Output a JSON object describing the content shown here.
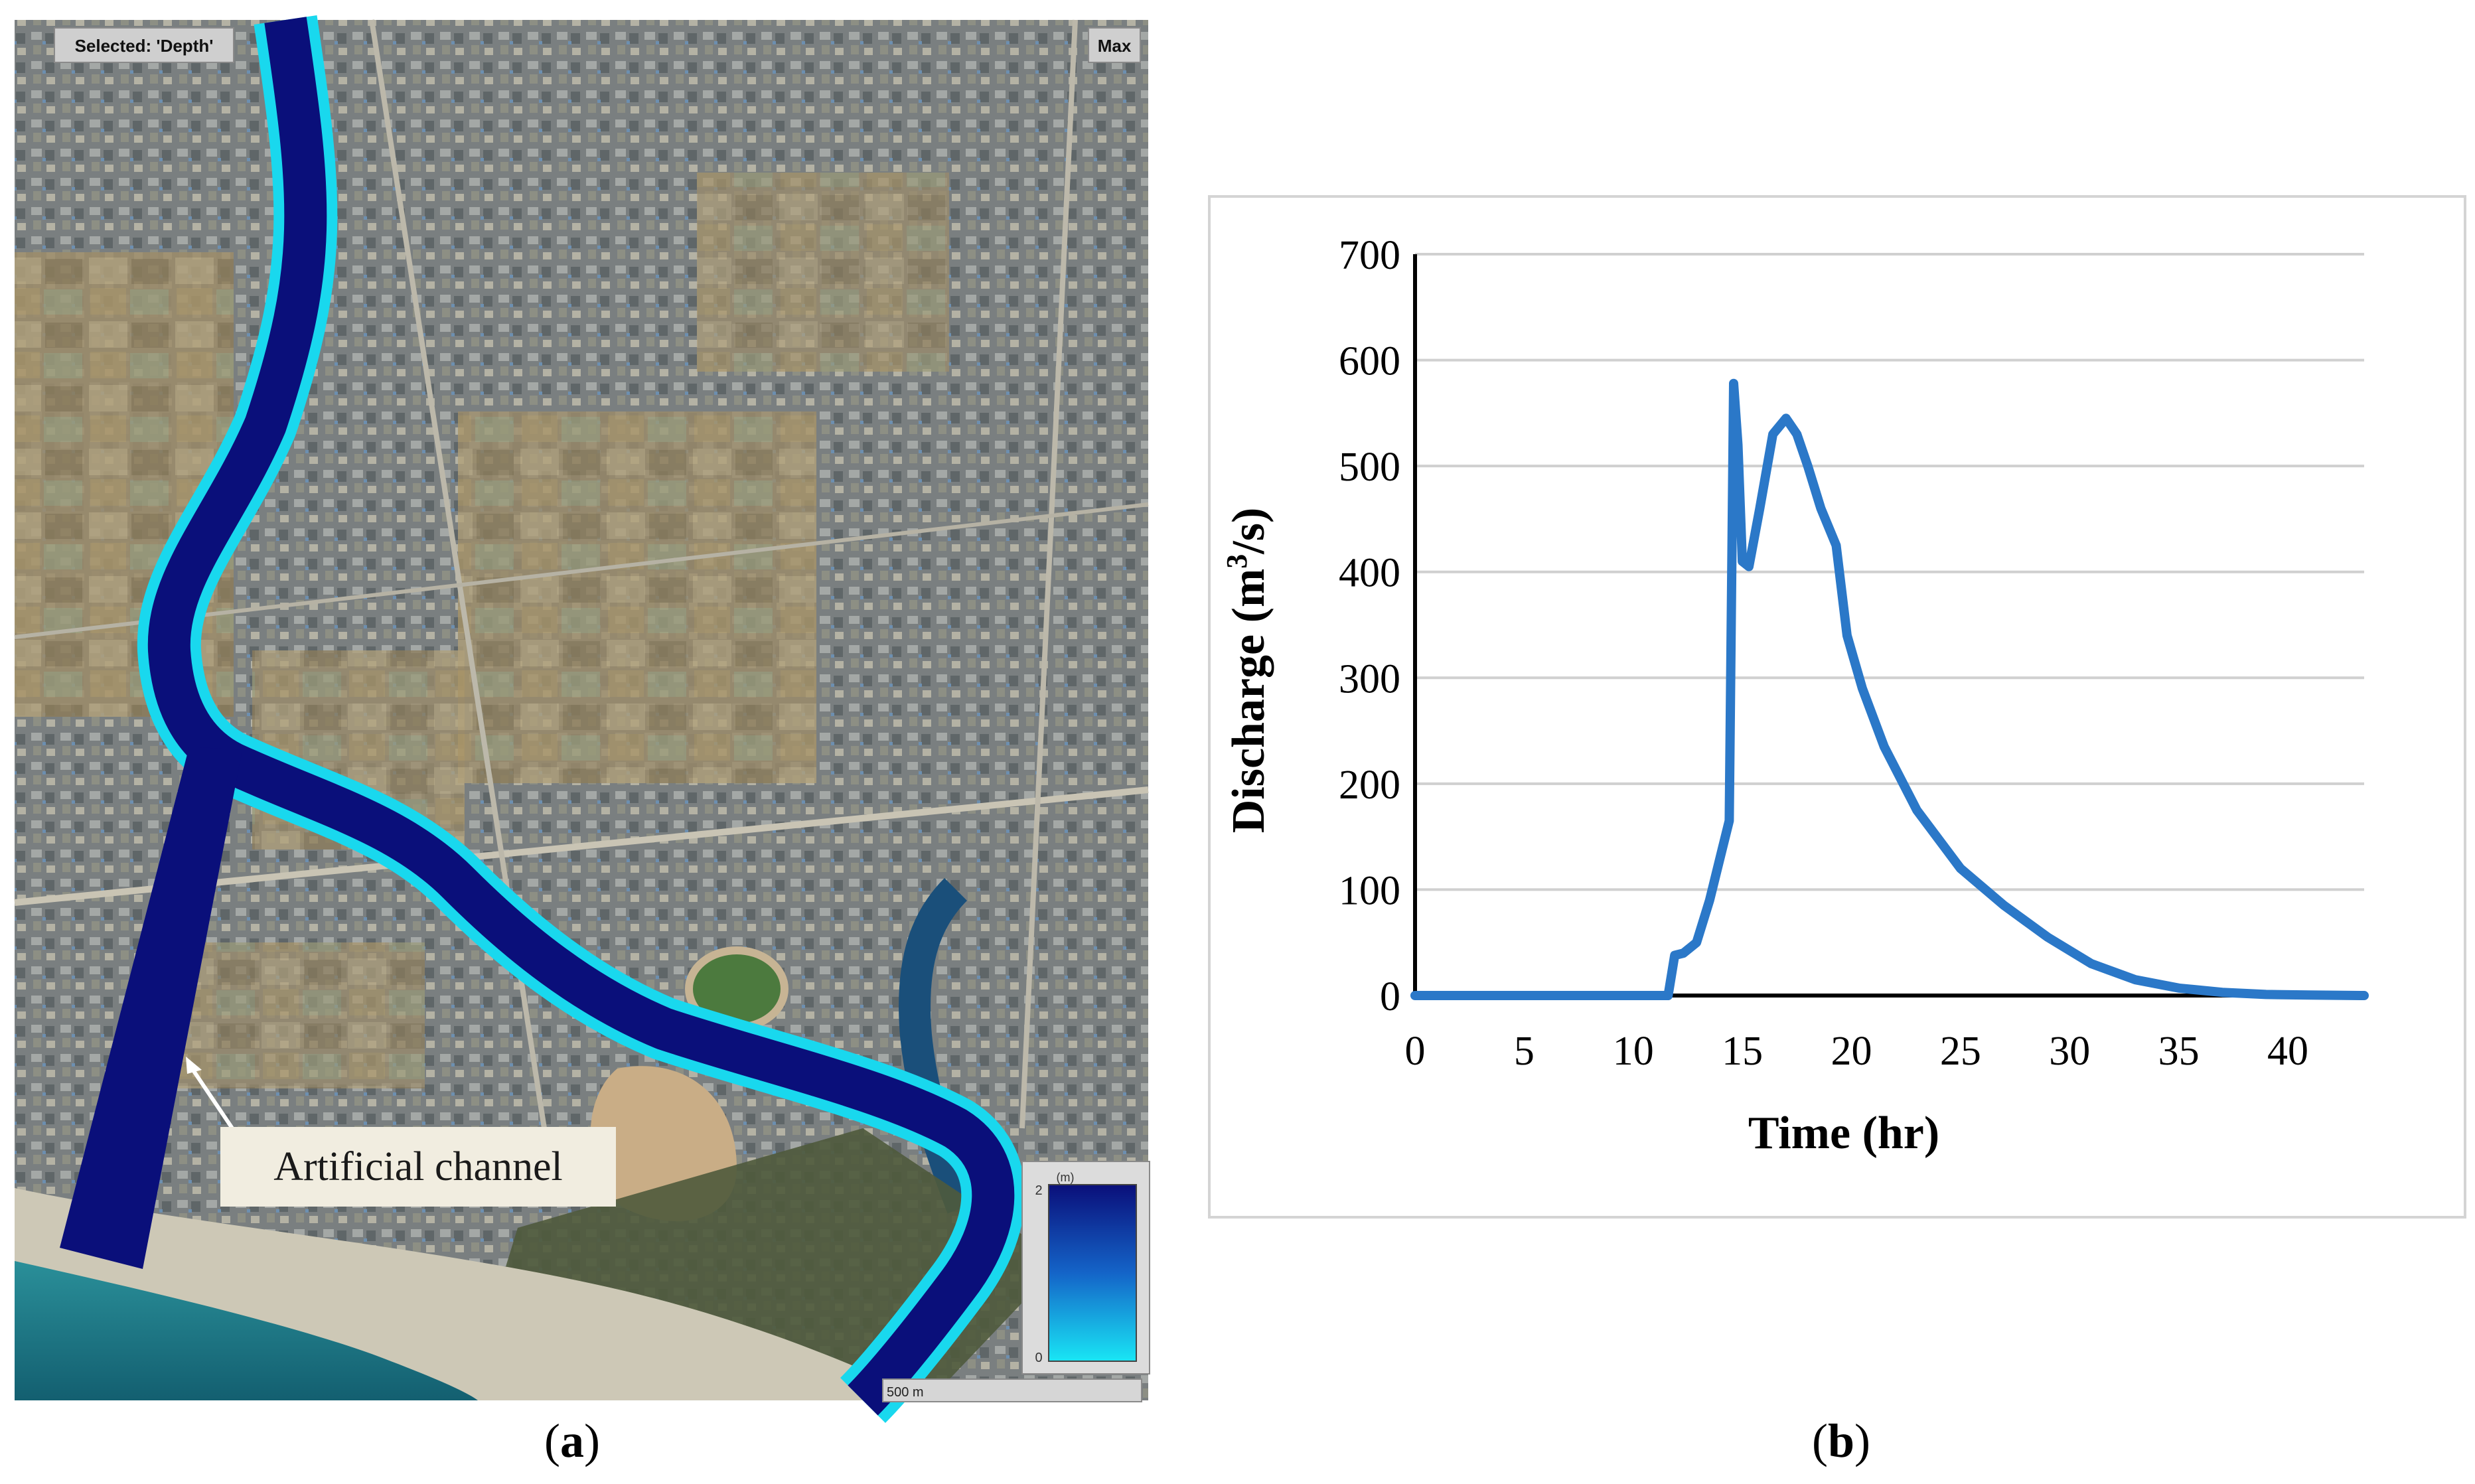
{
  "panel_a": {
    "label_open": "(",
    "label_letter": "a",
    "label_close": ")",
    "selected_tag": "Selected: 'Depth'",
    "max_tag": "Max",
    "channel_annotation": "Artificial channel",
    "legend_unit": "(m)",
    "legend_top_value": "2",
    "legend_bottom_value": "0",
    "scale_text": "500 m",
    "colors": {
      "deep_water": "#0a0f7a",
      "shallow_water": "#19e0f0",
      "sea": "#1c7f8f",
      "beach": "#cdc8b6"
    }
  },
  "panel_b": {
    "label_open": "(",
    "label_letter": "b",
    "label_close": ")"
  },
  "chart_data": {
    "type": "line",
    "title": "",
    "xlabel": "Time (hr)",
    "ylabel_main": "Discharge (m",
    "ylabel_sup": "3",
    "ylabel_end": "/s)",
    "xlim": [
      0,
      43.5
    ],
    "ylim": [
      0,
      700
    ],
    "xticks": [
      0,
      5,
      10,
      15,
      20,
      25,
      30,
      35,
      40
    ],
    "yticks": [
      0,
      100,
      200,
      300,
      400,
      500,
      600,
      700
    ],
    "grid": "horizontal",
    "line_color": "#2b78c8",
    "series": [
      {
        "name": "Discharge",
        "x": [
          0,
          11.6,
          11.9,
          12.3,
          12.9,
          13.5,
          14.1,
          14.4,
          14.6,
          14.8,
          15.0,
          15.3,
          15.8,
          16.4,
          17.0,
          17.5,
          18.0,
          18.6,
          19.3,
          19.8,
          20.5,
          21.5,
          23.0,
          25.0,
          27.0,
          29.0,
          31.0,
          33.0,
          35.0,
          37.0,
          39.0,
          41.0,
          43.5
        ],
        "y": [
          0,
          0,
          38,
          40,
          50,
          90,
          140,
          165,
          578,
          520,
          410,
          405,
          460,
          530,
          545,
          530,
          500,
          460,
          425,
          340,
          290,
          235,
          175,
          120,
          85,
          55,
          30,
          15,
          7,
          3,
          1,
          0.5,
          0
        ]
      }
    ]
  }
}
